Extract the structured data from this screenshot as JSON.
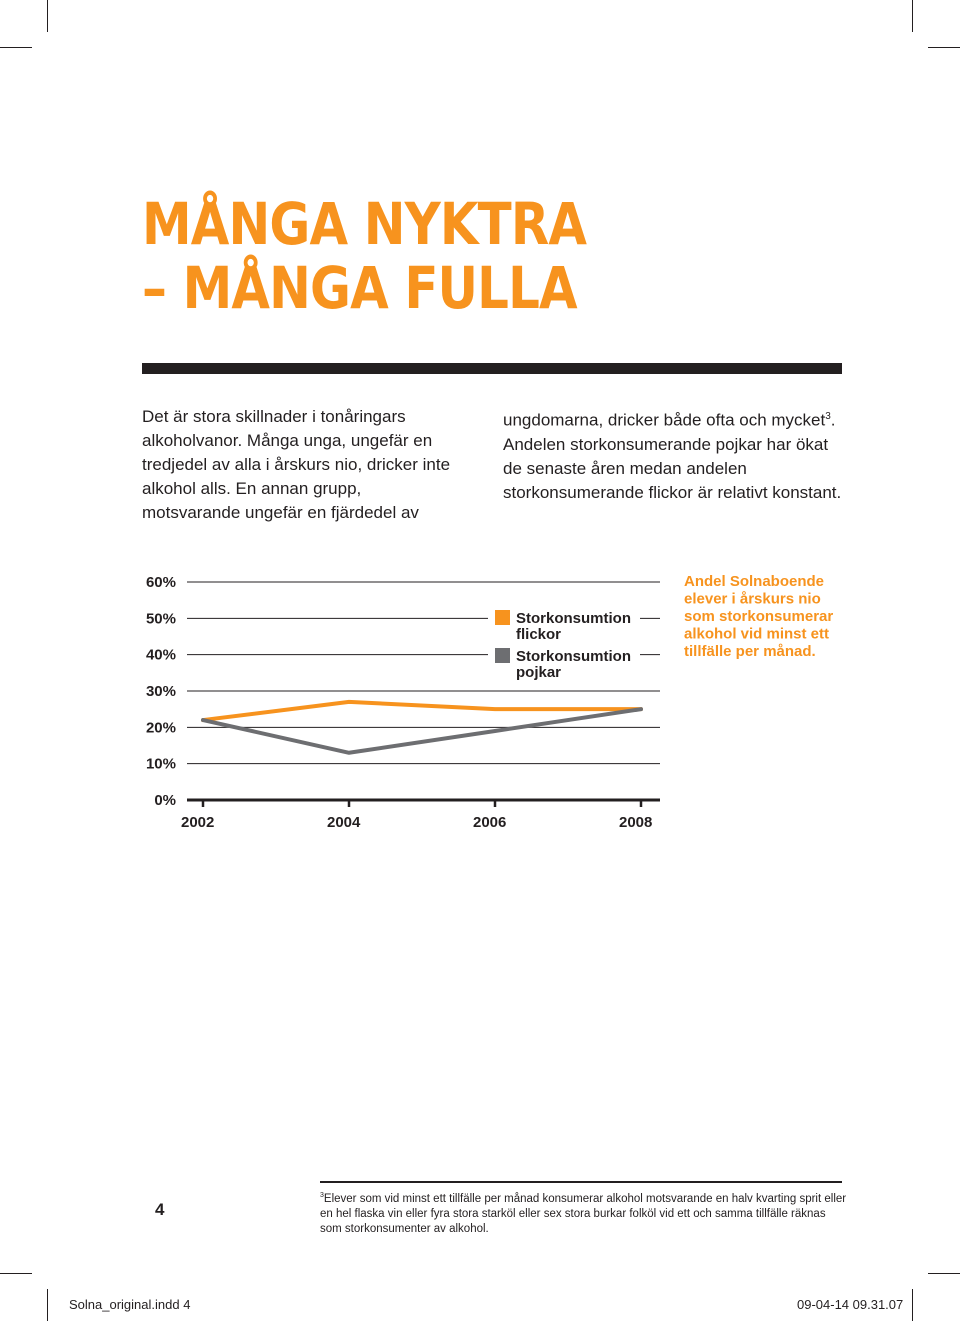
{
  "title": {
    "line1": "MÅNGA NYKTRA",
    "line2": "– MÅNGA FULLA"
  },
  "body": {
    "left": "Det är stora skillnader i tonåringars alkoholvanor. Många unga, ungefär en tredjedel av alla i årskurs nio, dricker inte alkohol alls. En annan grupp, motsvarande ungefär en fjärdedel av",
    "right_before_sup": "ungdomarna, dricker både ofta och mycket",
    "right_sup": "3",
    "right_after_sup": ". Andelen storkonsumerande pojkar har ökat de senaste åren medan andelen storkonsumerande flickor är relativt konstant."
  },
  "chart_data": {
    "type": "line",
    "x": [
      "2002",
      "2004",
      "2006",
      "2008"
    ],
    "y_ticks": [
      "60%",
      "50%",
      "40%",
      "30%",
      "20%",
      "10%",
      "0%"
    ],
    "ylim": [
      0,
      60
    ],
    "series": [
      {
        "name": "Storkonsumtion flickor",
        "color": "#f7931e",
        "values": [
          22,
          27,
          25,
          25
        ]
      },
      {
        "name": "Storkonsumtion pojkar",
        "color": "#6d6e71",
        "values": [
          22,
          13,
          19,
          25
        ]
      }
    ],
    "legend": [
      {
        "line1": "Storkonsumtion",
        "line2": "flickor",
        "color": "#f7931e"
      },
      {
        "line1": "Storkonsumtion",
        "line2": "pojkar",
        "color": "#6d6e71"
      }
    ],
    "note": [
      "Andel Solnaboende",
      "elever i årskurs nio",
      "som storkonsumerar",
      "alkohol vid minst ett",
      "tillfälle per månad."
    ],
    "grid": true,
    "legend_position": "inside-top-right"
  },
  "footer": {
    "page_number": "4",
    "footnote_sup": "3",
    "footnote": "Elever som vid minst ett tillfälle per månad konsumerar alkohol motsvarande en halv kvarting sprit eller en hel flaska vin eller fyra stora starköl eller sex stora burkar folköl vid ett och samma tillfälle räknas som storkonsumenter av alkohol.",
    "slug_left": "Solna_original.indd   4",
    "slug_right": "09-04-14   09.31.07"
  }
}
